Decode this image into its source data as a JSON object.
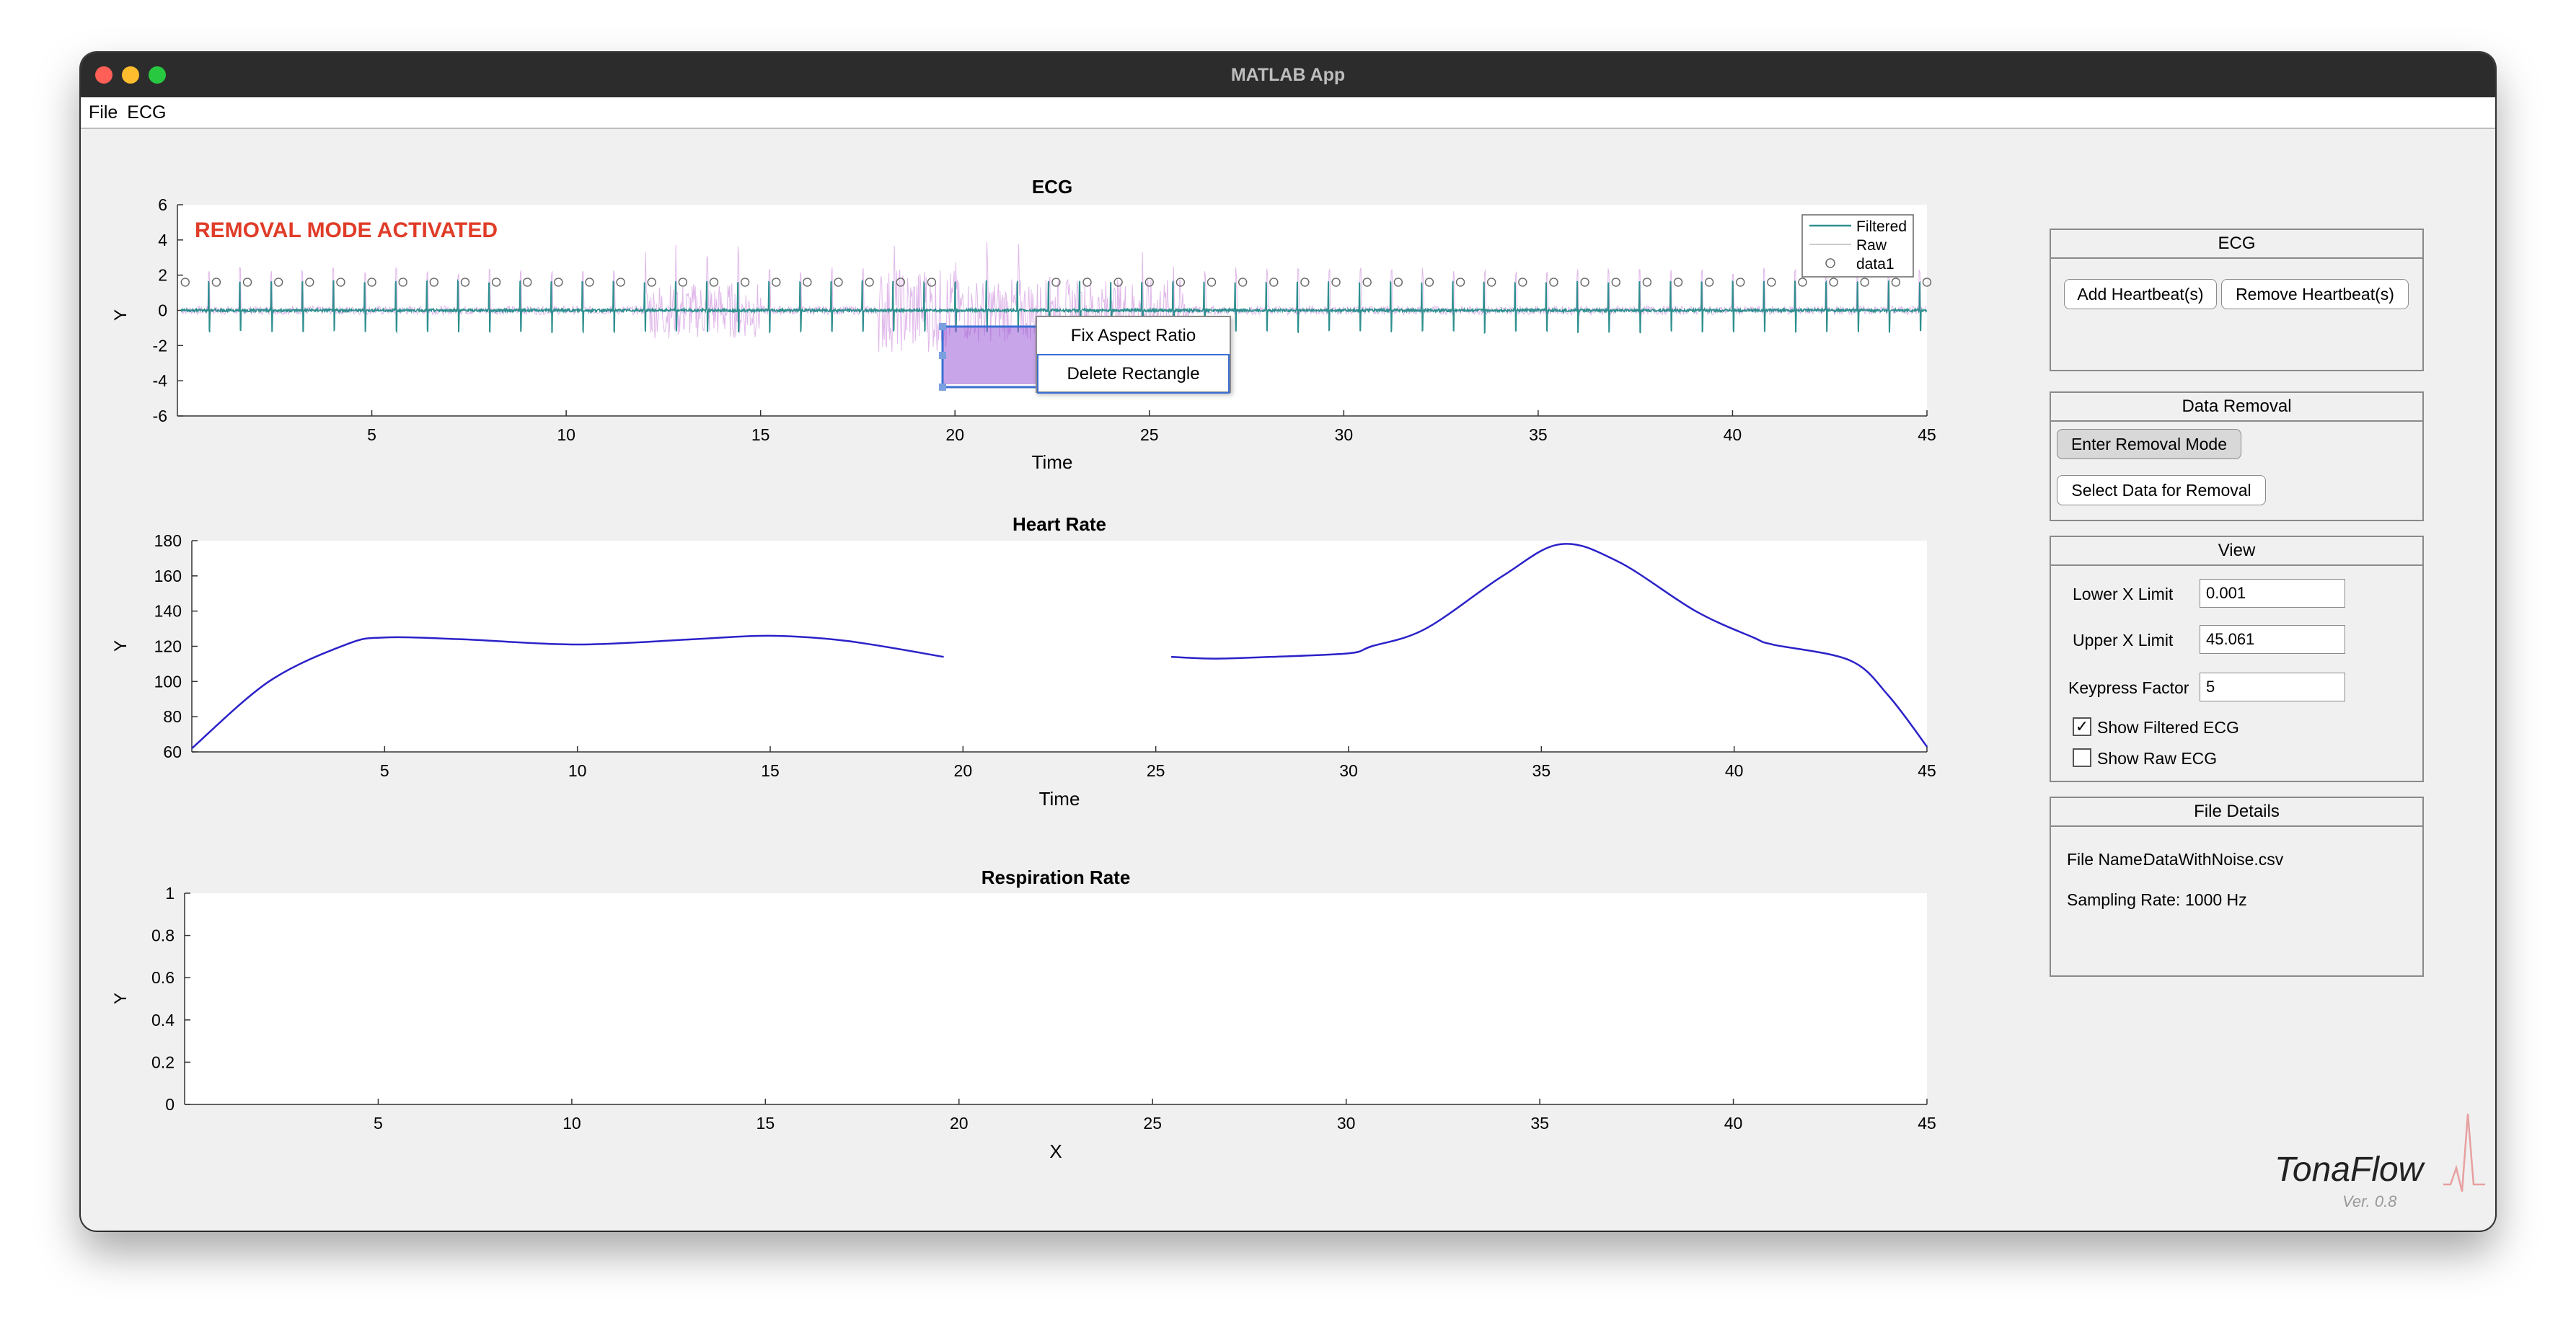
{
  "window": {
    "title": "MATLAB App"
  },
  "menu": [
    "File",
    "ECG"
  ],
  "ecg_plot": {
    "title": "ECG",
    "xlabel": "Time",
    "ylabel": "Y",
    "yticks": [
      "6",
      "4",
      "2",
      "0",
      "-2",
      "-4",
      "-6"
    ],
    "xticks": [
      "5",
      "10",
      "15",
      "20",
      "25",
      "30",
      "35",
      "40",
      "45"
    ],
    "overlay": "REMOVAL MODE ACTIVATED",
    "legend": [
      "Filtered",
      "Raw",
      "data1"
    ]
  },
  "context_menu": [
    "Fix Aspect Ratio",
    "Delete Rectangle"
  ],
  "hr_plot": {
    "title": "Heart Rate",
    "xlabel": "Time",
    "ylabel": "Y",
    "yticks": [
      "180",
      "160",
      "140",
      "120",
      "100",
      "80",
      "60"
    ],
    "xticks": [
      "5",
      "10",
      "15",
      "20",
      "25",
      "30",
      "35",
      "40",
      "45"
    ]
  },
  "resp_plot": {
    "title": "Respiration Rate",
    "xlabel": "X",
    "ylabel": "Y",
    "yticks": [
      "1",
      "0.8",
      "0.6",
      "0.4",
      "0.2",
      "0"
    ],
    "xticks": [
      "5",
      "10",
      "15",
      "20",
      "25",
      "30",
      "35",
      "40",
      "45"
    ]
  },
  "ecg_panel": {
    "title": "ECG",
    "add_button": "Add Heartbeat(s)",
    "remove_button": "Remove Heartbeat(s)"
  },
  "removal_panel": {
    "title": "Data Removal",
    "enter_button": "Enter Removal Mode",
    "select_button": "Select Data for Removal"
  },
  "view_panel": {
    "title": "View",
    "lower_label": "Lower X Limit",
    "lower_value": "0.001",
    "upper_label": "Upper X Limit",
    "upper_value": "45.061",
    "keypress_label": "Keypress Factor",
    "keypress_value": "5",
    "show_filtered_label": "Show Filtered ECG",
    "show_filtered_checked": true,
    "show_raw_label": "Show Raw ECG",
    "show_raw_checked": false
  },
  "file_panel": {
    "title": "File Details",
    "file_name_label": "File Name:",
    "file_name": "DataWithNoise.csv",
    "sampling_label": "Sampling Rate:",
    "sampling_rate": "1000 Hz"
  },
  "branding": {
    "logo": "TonaFlow",
    "version": "Ver. 0.8"
  },
  "chart_data": [
    {
      "type": "line",
      "title": "ECG",
      "xlabel": "Time",
      "ylabel": "Y",
      "xlim": [
        0,
        45
      ],
      "ylim": [
        -6,
        6
      ],
      "series": [
        {
          "name": "Filtered",
          "description": "periodic spikes ~0.8 s interval, amplitude about +1.6 / -1.2"
        },
        {
          "name": "Raw",
          "description": "noisy trace, large excursions between x=12 and x=26"
        },
        {
          "name": "data1",
          "marker": "circle",
          "y": 1.6
        }
      ],
      "colors": {
        "Filtered": "#2e8f8f",
        "Raw": "#c77dd8",
        "data1": "#666666"
      },
      "removal_box_x": [
        19.7,
        22.2
      ]
    },
    {
      "type": "line",
      "title": "Heart Rate",
      "xlabel": "Time",
      "ylabel": "Y",
      "xlim": [
        0,
        45
      ],
      "ylim": [
        60,
        180
      ],
      "color": "#2b22c8",
      "segments": [
        {
          "x": [
            0,
            2,
            4,
            5,
            7,
            10,
            13,
            15,
            17,
            19.5
          ],
          "y": [
            62,
            100,
            121,
            125,
            124,
            121,
            124,
            126,
            123,
            114
          ]
        },
        {
          "x": [
            25.4,
            26.5,
            28,
            30,
            30.6,
            32,
            34,
            35.5,
            37,
            39,
            40.5,
            41,
            43,
            44,
            45
          ],
          "y": [
            114,
            113,
            114,
            116,
            120,
            130,
            160,
            178,
            168,
            140,
            125,
            121,
            112,
            92,
            63
          ]
        }
      ]
    },
    {
      "type": "line",
      "title": "Respiration Rate",
      "xlabel": "X",
      "ylabel": "Y",
      "xlim": [
        0,
        45
      ],
      "ylim": [
        0,
        1
      ],
      "series": []
    }
  ]
}
